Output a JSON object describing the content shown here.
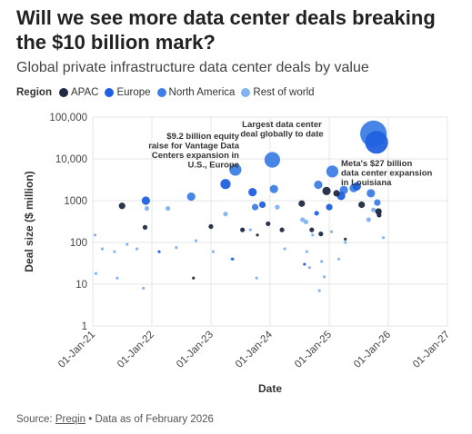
{
  "title": "Will we see more data center deals breaking the $10 billion mark?",
  "subtitle": "Global private infrastructure data center deals by value",
  "legend": {
    "title": "Region",
    "items": [
      {
        "label": "APAC",
        "color": "#1f2a44"
      },
      {
        "label": "Europe",
        "color": "#2060e0"
      },
      {
        "label": "North America",
        "color": "#3d7fe6"
      },
      {
        "label": "Rest of world",
        "color": "#7fb2f0"
      }
    ]
  },
  "source": {
    "prefix": "Source: ",
    "link": "Preqin",
    "suffix": " • Data as of February 2026"
  },
  "chart_data": {
    "type": "scatter",
    "xlabel": "Date",
    "ylabel": "Deal size ($ million)",
    "yscale": "log",
    "ylim": [
      1,
      100000
    ],
    "xlim": [
      "2021-01-01",
      "2027-01-01"
    ],
    "x_ticks": [
      "01-Jan-21",
      "01-Jan-22",
      "01-Jan-23",
      "01-Jan-24",
      "01-Jan-25",
      "01-Jan-26",
      "01-Jan-27"
    ],
    "y_ticks": [
      "1",
      "10",
      "100",
      "1000",
      "10,000",
      "100,000"
    ],
    "grid": true,
    "annotations": [
      {
        "text": [
          "$9.2 billion equity",
          "raise for Vantage Data",
          "Centers expansion in",
          "U.S., Europe"
        ],
        "x": "2023-06-01",
        "y": 9200
      },
      {
        "text": [
          "Largest data center",
          "deal globally to date"
        ],
        "x": "2025-10-01",
        "y": 40000
      },
      {
        "text": [
          "Meta's $27 billion",
          "data center expansion",
          "in Louisiana"
        ],
        "x": "2025-11-01",
        "y": 27000
      }
    ],
    "series": [
      {
        "name": "APAC",
        "color": "#1f2a44",
        "points": [
          {
            "x": "2021-07-01",
            "y": 750,
            "s": 3
          },
          {
            "x": "2021-11-20",
            "y": 230,
            "s": 2
          },
          {
            "x": "2022-09-15",
            "y": 14,
            "s": 1
          },
          {
            "x": "2023-01-01",
            "y": 240,
            "s": 2
          },
          {
            "x": "2023-07-15",
            "y": 200,
            "s": 2
          },
          {
            "x": "2023-10-15",
            "y": 150,
            "s": 1
          },
          {
            "x": "2023-12-20",
            "y": 280,
            "s": 2
          },
          {
            "x": "2024-03-15",
            "y": 200,
            "s": 2
          },
          {
            "x": "2024-07-15",
            "y": 850,
            "s": 3
          },
          {
            "x": "2024-09-15",
            "y": 200,
            "s": 2
          },
          {
            "x": "2024-11-10",
            "y": 160,
            "s": 2
          },
          {
            "x": "2024-12-15",
            "y": 1700,
            "s": 4
          },
          {
            "x": "2025-02-15",
            "y": 1500,
            "s": 3
          },
          {
            "x": "2025-04-10",
            "y": 120,
            "s": 1
          },
          {
            "x": "2025-07-20",
            "y": 800,
            "s": 3
          },
          {
            "x": "2025-11-01",
            "y": 550,
            "s": 3
          },
          {
            "x": "2025-11-05",
            "y": 450,
            "s": 2
          }
        ]
      },
      {
        "name": "Europe",
        "color": "#2060e0",
        "points": [
          {
            "x": "2021-11-25",
            "y": 1000,
            "s": 4
          },
          {
            "x": "2022-02-15",
            "y": 60,
            "s": 1
          },
          {
            "x": "2023-04-01",
            "y": 2500,
            "s": 5
          },
          {
            "x": "2023-05-15",
            "y": 40,
            "s": 1
          },
          {
            "x": "2023-09-15",
            "y": 1600,
            "s": 4
          },
          {
            "x": "2023-11-15",
            "y": 800,
            "s": 3
          },
          {
            "x": "2024-08-01",
            "y": 30,
            "s": 1
          },
          {
            "x": "2024-10-15",
            "y": 500,
            "s": 2
          },
          {
            "x": "2025-01-01",
            "y": 700,
            "s": 3
          },
          {
            "x": "2025-03-15",
            "y": 1300,
            "s": 4
          },
          {
            "x": "2025-06-20",
            "y": 2200,
            "s": 4
          },
          {
            "x": "2025-10-20",
            "y": 25000,
            "s": 12
          }
        ]
      },
      {
        "name": "North America",
        "color": "#3d7fe6",
        "points": [
          {
            "x": "2022-09-01",
            "y": 1250,
            "s": 4
          },
          {
            "x": "2023-06-01",
            "y": 5500,
            "s": 6
          },
          {
            "x": "2023-10-01",
            "y": 700,
            "s": 3
          },
          {
            "x": "2024-01-15",
            "y": 9500,
            "s": 8
          },
          {
            "x": "2024-01-25",
            "y": 1900,
            "s": 4
          },
          {
            "x": "2024-10-25",
            "y": 2400,
            "s": 4
          },
          {
            "x": "2025-01-20",
            "y": 5000,
            "s": 6
          },
          {
            "x": "2025-04-01",
            "y": 1800,
            "s": 4
          },
          {
            "x": "2025-06-01",
            "y": 2000,
            "s": 4
          },
          {
            "x": "2025-09-15",
            "y": 1500,
            "s": 4
          },
          {
            "x": "2025-10-01",
            "y": 40000,
            "s": 14
          },
          {
            "x": "2025-10-25",
            "y": 900,
            "s": 3
          }
        ]
      },
      {
        "name": "Rest of world",
        "color": "#7fb2f0",
        "points": [
          {
            "x": "2021-01-15",
            "y": 150,
            "s": 1
          },
          {
            "x": "2021-01-20",
            "y": 18,
            "s": 1
          },
          {
            "x": "2021-03-01",
            "y": 70,
            "s": 1
          },
          {
            "x": "2021-05-15",
            "y": 60,
            "s": 1
          },
          {
            "x": "2021-06-01",
            "y": 14,
            "s": 1
          },
          {
            "x": "2021-08-01",
            "y": 90,
            "s": 1
          },
          {
            "x": "2021-10-01",
            "y": 70,
            "s": 1
          },
          {
            "x": "2021-11-10",
            "y": 8,
            "s": 1
          },
          {
            "x": "2021-12-01",
            "y": 650,
            "s": 2
          },
          {
            "x": "2022-04-10",
            "y": 650,
            "s": 2
          },
          {
            "x": "2022-06-01",
            "y": 75,
            "s": 1
          },
          {
            "x": "2022-10-01",
            "y": 110,
            "s": 1
          },
          {
            "x": "2023-01-15",
            "y": 60,
            "s": 1
          },
          {
            "x": "2023-04-01",
            "y": 480,
            "s": 2
          },
          {
            "x": "2023-05-10",
            "y": 40,
            "s": 1
          },
          {
            "x": "2023-09-01",
            "y": 200,
            "s": 1
          },
          {
            "x": "2023-10-10",
            "y": 14,
            "s": 1
          },
          {
            "x": "2024-02-15",
            "y": 700,
            "s": 2
          },
          {
            "x": "2024-04-01",
            "y": 70,
            "s": 1
          },
          {
            "x": "2024-07-20",
            "y": 350,
            "s": 2
          },
          {
            "x": "2024-08-10",
            "y": 310,
            "s": 2
          },
          {
            "x": "2024-08-15",
            "y": 60,
            "s": 1
          },
          {
            "x": "2024-09-01",
            "y": 25,
            "s": 1
          },
          {
            "x": "2024-09-20",
            "y": 150,
            "s": 1
          },
          {
            "x": "2024-11-01",
            "y": 7,
            "s": 1
          },
          {
            "x": "2024-11-15",
            "y": 35,
            "s": 1
          },
          {
            "x": "2024-12-01",
            "y": 15,
            "s": 1
          },
          {
            "x": "2025-01-15",
            "y": 180,
            "s": 1
          },
          {
            "x": "2025-03-01",
            "y": 40,
            "s": 1
          },
          {
            "x": "2025-04-10",
            "y": 100,
            "s": 1
          },
          {
            "x": "2025-09-01",
            "y": 350,
            "s": 2
          },
          {
            "x": "2025-10-01",
            "y": 600,
            "s": 2
          },
          {
            "x": "2025-12-01",
            "y": 130,
            "s": 1
          }
        ]
      }
    ]
  }
}
